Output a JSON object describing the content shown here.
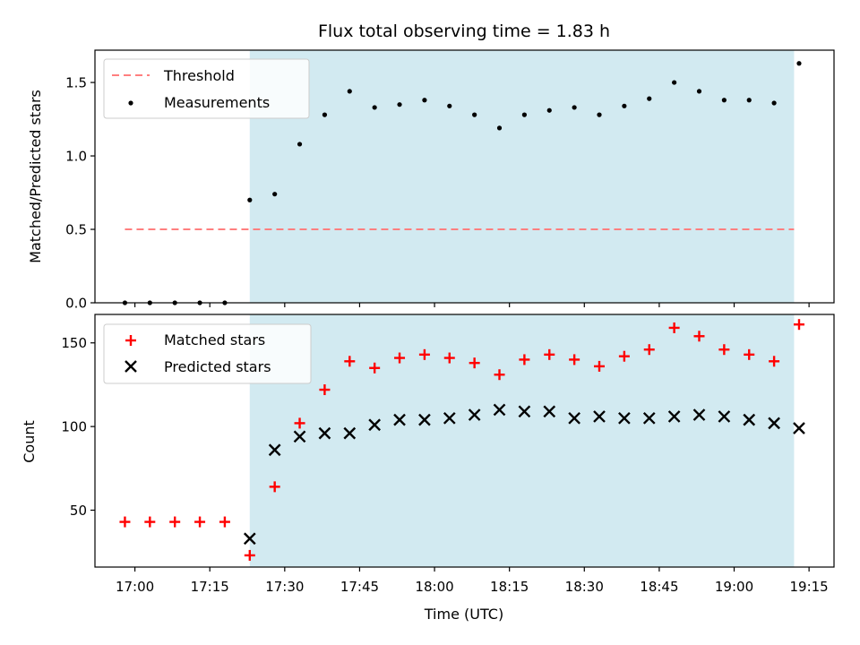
{
  "chart_data": [
    {
      "type": "scatter",
      "title": "Flux total observing time = 1.83 h",
      "xlabel": "",
      "ylabel": "Matched/Predicted stars",
      "xlim": [
        "16:52",
        "19:20"
      ],
      "ylim": [
        0,
        1.72
      ],
      "yticks": [
        0.0,
        0.5,
        1.0,
        1.5
      ],
      "ytick_labels": [
        "0.0",
        "0.5",
        "1.0",
        "1.5"
      ],
      "shaded_region": {
        "x": [
          "17:23",
          "19:12"
        ],
        "color": "#add8e6"
      },
      "legend_position": "top-left",
      "series": [
        {
          "name": "Threshold",
          "kind": "dashed-line",
          "color": "#ff7f7f",
          "x": [
            "16:58",
            "19:12"
          ],
          "y": [
            0.5,
            0.5
          ]
        },
        {
          "name": "Measurements",
          "kind": "dots",
          "color": "#000000",
          "x": [
            "16:58",
            "17:03",
            "17:08",
            "17:13",
            "17:18",
            "17:23",
            "17:28",
            "17:33",
            "17:38",
            "17:43",
            "17:48",
            "17:53",
            "17:58",
            "18:03",
            "18:08",
            "18:13",
            "18:18",
            "18:23",
            "18:28",
            "18:33",
            "18:38",
            "18:43",
            "18:48",
            "18:53",
            "18:58",
            "19:03",
            "19:08",
            "19:13"
          ],
          "y": [
            0.0,
            0.0,
            0.0,
            0.0,
            0.0,
            0.7,
            0.74,
            1.08,
            1.28,
            1.44,
            1.33,
            1.35,
            1.38,
            1.34,
            1.28,
            1.19,
            1.28,
            1.31,
            1.33,
            1.28,
            1.34,
            1.39,
            1.5,
            1.44,
            1.38,
            1.38,
            1.36,
            1.63
          ]
        }
      ]
    },
    {
      "type": "scatter",
      "title": "",
      "xlabel": "Time (UTC)",
      "ylabel": "Count",
      "xlim": [
        "16:52",
        "19:20"
      ],
      "ylim": [
        16,
        167
      ],
      "yticks": [
        50,
        100,
        150
      ],
      "ytick_labels": [
        "50",
        "100",
        "150"
      ],
      "xticks": [
        "17:00",
        "17:15",
        "17:30",
        "17:45",
        "18:00",
        "18:15",
        "18:30",
        "18:45",
        "19:00",
        "19:15"
      ],
      "xtick_labels": [
        "17:00",
        "17:15",
        "17:30",
        "17:45",
        "18:00",
        "18:15",
        "18:30",
        "18:45",
        "19:00",
        "19:15"
      ],
      "shaded_region": {
        "x": [
          "17:23",
          "19:12"
        ],
        "color": "#add8e6"
      },
      "legend_position": "top-left",
      "series": [
        {
          "name": "Matched stars",
          "kind": "plus",
          "color": "#ff0000",
          "x": [
            "16:58",
            "17:03",
            "17:08",
            "17:13",
            "17:18",
            "17:23",
            "17:28",
            "17:33",
            "17:38",
            "17:43",
            "17:48",
            "17:53",
            "17:58",
            "18:03",
            "18:08",
            "18:13",
            "18:18",
            "18:23",
            "18:28",
            "18:33",
            "18:38",
            "18:43",
            "18:48",
            "18:53",
            "18:58",
            "19:03",
            "19:08",
            "19:13"
          ],
          "y": [
            43,
            43,
            43,
            43,
            43,
            23,
            64,
            102,
            122,
            139,
            135,
            141,
            143,
            141,
            138,
            131,
            140,
            143,
            140,
            136,
            142,
            146,
            159,
            154,
            146,
            143,
            139,
            161
          ]
        },
        {
          "name": "Predicted stars",
          "kind": "cross",
          "color": "#000000",
          "x": [
            "17:23",
            "17:28",
            "17:33",
            "17:38",
            "17:43",
            "17:48",
            "17:53",
            "17:58",
            "18:03",
            "18:08",
            "18:13",
            "18:18",
            "18:23",
            "18:28",
            "18:33",
            "18:38",
            "18:43",
            "18:48",
            "18:53",
            "18:58",
            "19:03",
            "19:08",
            "19:13"
          ],
          "y": [
            33,
            86,
            94,
            96,
            96,
            101,
            104,
            104,
            105,
            107,
            110,
            109,
            109,
            105,
            106,
            105,
            105,
            106,
            107,
            106,
            104,
            102,
            99
          ]
        }
      ]
    }
  ]
}
